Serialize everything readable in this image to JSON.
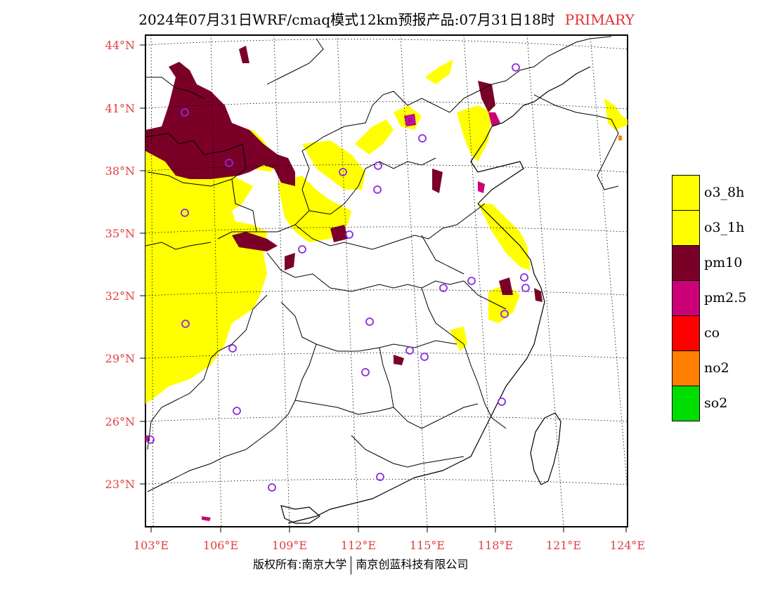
{
  "title": {
    "main": "2024年07月31日WRF/cmaq模式12km预报产品:07月31日18时",
    "tag": "PRIMARY"
  },
  "map": {
    "lat_labels": [
      "44°N",
      "41°N",
      "38°N",
      "35°N",
      "32°N",
      "29°N",
      "26°N",
      "23°N"
    ],
    "lon_labels": [
      "103°E",
      "106°E",
      "109°E",
      "112°E",
      "115°E",
      "118°E",
      "121°E",
      "124°E"
    ],
    "colors": {
      "o3_8h": "#ffff00",
      "o3_1h": "#ffff00",
      "pm10": "#7a0028",
      "pm2_5": "#cc0077",
      "co": "#ff0000",
      "no2": "#ff8000",
      "so2": "#00dd00",
      "station": "#8a2be2",
      "label": "#e04040"
    }
  },
  "legend": [
    {
      "label": "o3_8h",
      "color": "#ffff00"
    },
    {
      "label": "o3_1h",
      "color": "#ffff00"
    },
    {
      "label": "pm10",
      "color": "#7a0028"
    },
    {
      "label": "pm2.5",
      "color": "#cc0077"
    },
    {
      "label": "co",
      "color": "#ff0000"
    },
    {
      "label": "no2",
      "color": "#ff8000"
    },
    {
      "label": "so2",
      "color": "#00dd00"
    }
  ],
  "footer": {
    "left": "版权所有:南京大学",
    "right": "南京创蓝科技有限公司"
  }
}
